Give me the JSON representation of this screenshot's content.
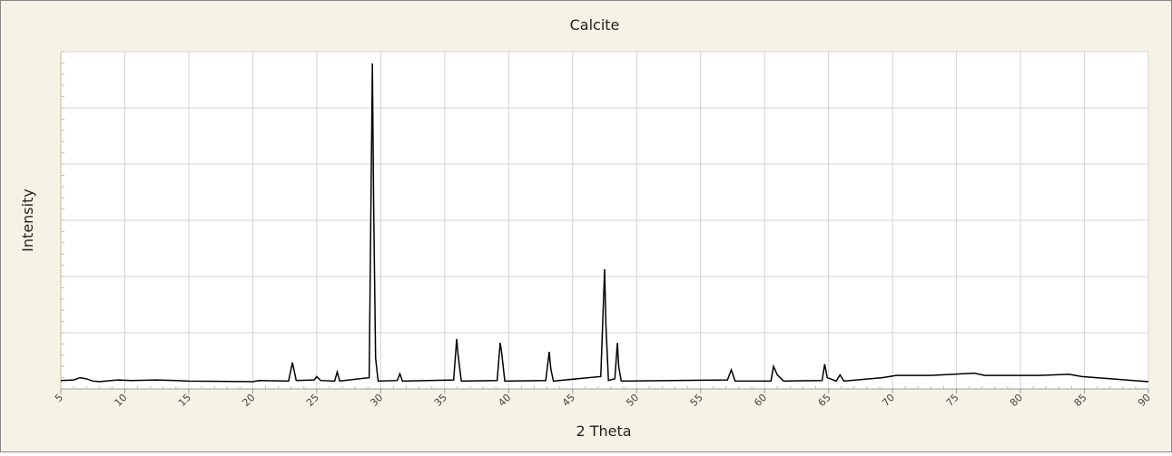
{
  "chart_data": {
    "type": "line",
    "title": "Calcite",
    "x_label": "2 Theta",
    "y_label": "Intensity",
    "x": [
      5,
      6,
      6.5,
      7,
      7.5,
      8,
      9.5,
      10.5,
      12.5,
      14,
      15,
      20,
      20.5,
      22.8,
      23.1,
      23.4,
      24.8,
      25,
      25.3,
      26.4,
      26.6,
      26.8,
      29.1,
      29.35,
      29.45,
      29.6,
      29.8,
      31.3,
      31.5,
      31.7,
      35.7,
      35.94,
      36.05,
      36.3,
      39.1,
      39.34,
      39.45,
      39.7,
      42.9,
      43.17,
      43.3,
      43.5,
      47.2,
      47.5,
      47.6,
      47.8,
      48.3,
      48.5,
      48.6,
      48.8,
      57.1,
      57.4,
      57.7,
      60.5,
      60.7,
      61,
      61.5,
      64.5,
      64.7,
      64.9,
      65.6,
      65.9,
      66.2,
      69.2,
      70.3,
      73,
      76.4,
      77.2,
      81.5,
      83.8,
      84.8,
      90
    ],
    "series": [
      {
        "name": "Calcite",
        "color": "#000000",
        "values": [
          0.15,
          0.16,
          0.2,
          0.18,
          0.14,
          0.13,
          0.16,
          0.15,
          0.16,
          0.15,
          0.14,
          0.13,
          0.15,
          0.14,
          0.47,
          0.15,
          0.16,
          0.22,
          0.15,
          0.14,
          0.3,
          0.14,
          0.2,
          5.79,
          3.27,
          0.55,
          0.14,
          0.15,
          0.27,
          0.14,
          0.16,
          0.89,
          0.6,
          0.14,
          0.15,
          0.82,
          0.65,
          0.14,
          0.15,
          0.66,
          0.35,
          0.14,
          0.22,
          2.13,
          1.15,
          0.15,
          0.18,
          0.82,
          0.4,
          0.14,
          0.16,
          0.34,
          0.14,
          0.14,
          0.4,
          0.25,
          0.14,
          0.15,
          0.44,
          0.2,
          0.14,
          0.25,
          0.14,
          0.2,
          0.24,
          0.24,
          0.28,
          0.24,
          0.24,
          0.26,
          0.22,
          0.13
        ]
      }
    ],
    "xlim": [
      5,
      90
    ],
    "ylim": [
      0,
      6
    ],
    "xticks": [
      5,
      10,
      15,
      20,
      25,
      30,
      35,
      40,
      45,
      50,
      55,
      60,
      65,
      70,
      75,
      80,
      85,
      90
    ],
    "ygrid": [
      1,
      2,
      3,
      4,
      5,
      6
    ],
    "grid": true
  }
}
